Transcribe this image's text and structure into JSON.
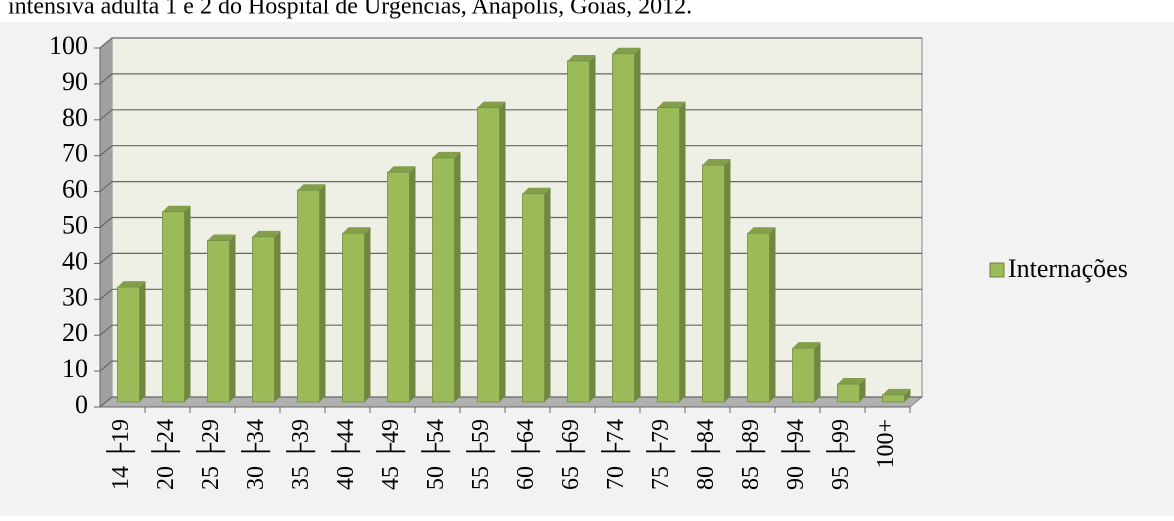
{
  "chart_data": {
    "type": "bar",
    "caption": "intensiva adulta 1 e 2 do Hospital de Urgências, Anápolis, Goiás, 2012.",
    "categories": [
      "14 ├19",
      "20 ├24",
      "25 ├29",
      "30 ├34",
      "35 ├39",
      "40 ├44",
      "45 ├49",
      "50 ├54",
      "55 ├59",
      "60 ├64",
      "65 ├69",
      "70 ├74",
      "75 ├79",
      "80 ├84",
      "85 ├89",
      "90 ├94",
      "95 ├99",
      "100+"
    ],
    "series": [
      {
        "name": "Internações",
        "color": "#9bbb59",
        "values": [
          32,
          53,
          45,
          46,
          59,
          47,
          64,
          68,
          82,
          58,
          95,
          97,
          82,
          66,
          47,
          15,
          5,
          2
        ]
      }
    ],
    "ylim": [
      0,
      100
    ],
    "yticks": [
      0,
      10,
      20,
      30,
      40,
      50,
      60,
      70,
      80,
      90,
      100
    ],
    "grid": true,
    "legend": "right"
  }
}
